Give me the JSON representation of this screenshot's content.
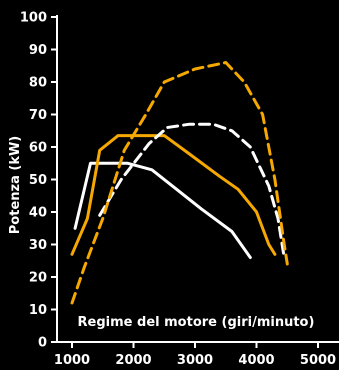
{
  "chart_data": {
    "type": "line",
    "xlabel": "Regime del motore (giri/minuto)",
    "ylabel": "Potenza (kW)",
    "xlim": [
      1000,
      5000
    ],
    "ylim": [
      0,
      100
    ],
    "x_ticks": [
      1000,
      2000,
      3000,
      4000,
      5000
    ],
    "y_ticks": [
      0,
      10,
      20,
      30,
      40,
      50,
      60,
      70,
      80,
      90,
      100
    ],
    "grid": false,
    "legend": "none",
    "series": [
      {
        "color": "#ffffff",
        "style": "solid",
        "points": [
          [
            1050,
            35
          ],
          [
            1300,
            55
          ],
          [
            1900,
            55
          ],
          [
            2300,
            53
          ],
          [
            2700,
            47
          ],
          [
            3100,
            41
          ],
          [
            3600,
            34
          ],
          [
            3900,
            26
          ]
        ]
      },
      {
        "color": "#f5a800",
        "style": "solid",
        "points": [
          [
            1000,
            27
          ],
          [
            1250,
            38
          ],
          [
            1450,
            59
          ],
          [
            1750,
            63.5
          ],
          [
            2500,
            63.5
          ],
          [
            2900,
            58
          ],
          [
            3400,
            51
          ],
          [
            3700,
            47
          ],
          [
            4000,
            40
          ],
          [
            4200,
            30
          ],
          [
            4300,
            27
          ]
        ]
      },
      {
        "color": "#ffffff",
        "style": "dashed",
        "points": [
          [
            1450,
            39
          ],
          [
            1800,
            50
          ],
          [
            2250,
            61
          ],
          [
            2550,
            66
          ],
          [
            2900,
            67
          ],
          [
            3300,
            67
          ],
          [
            3600,
            65
          ],
          [
            3900,
            60
          ],
          [
            4200,
            48
          ],
          [
            4350,
            38
          ],
          [
            4450,
            26
          ]
        ]
      },
      {
        "color": "#f5a800",
        "style": "dashed",
        "points": [
          [
            1000,
            12
          ],
          [
            1200,
            23
          ],
          [
            1500,
            38
          ],
          [
            1850,
            59
          ],
          [
            2200,
            70
          ],
          [
            2500,
            80
          ],
          [
            3000,
            84
          ],
          [
            3500,
            86
          ],
          [
            3800,
            80
          ],
          [
            4100,
            70
          ],
          [
            4300,
            50
          ],
          [
            4450,
            30
          ],
          [
            4500,
            24
          ]
        ]
      }
    ]
  }
}
